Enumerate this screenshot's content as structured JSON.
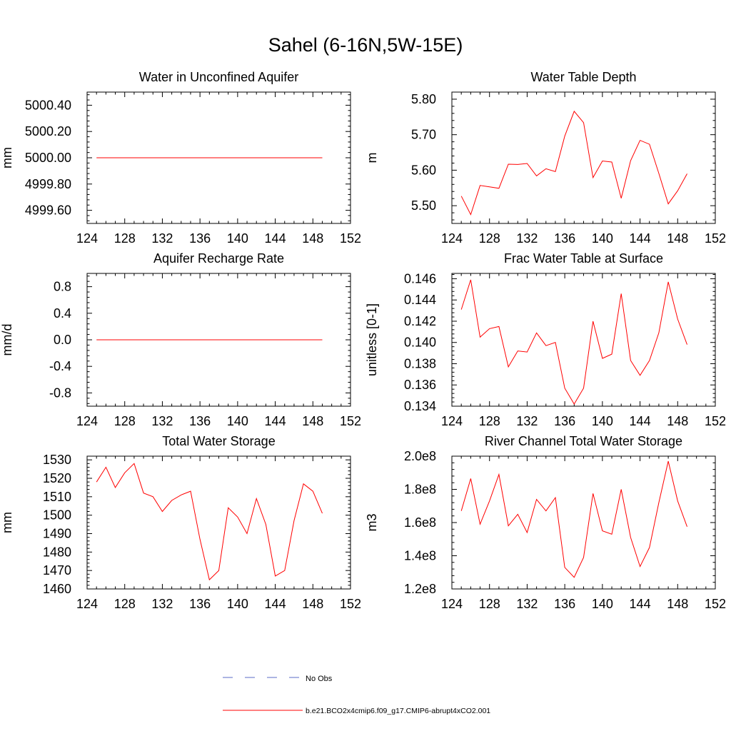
{
  "title": "Sahel (6-16N,5W-15E)",
  "colors": {
    "series": "#ff0000",
    "obs": "#5b6bc7",
    "axis": "#000000"
  },
  "chart_data": [
    {
      "id": "aquifer-water",
      "type": "line",
      "title": "Water in Unconfined Aquifer",
      "xlabel": "",
      "ylabel": "mm",
      "xlim": [
        124,
        152
      ],
      "ylim": [
        4999.5,
        5000.5
      ],
      "xticks": [
        "124",
        "128",
        "132",
        "136",
        "140",
        "144",
        "148",
        "152"
      ],
      "yticks": [
        {
          "v": 4999.6,
          "label": "4999.60"
        },
        {
          "v": 4999.8,
          "label": "4999.80"
        },
        {
          "v": 5000.0,
          "label": "5000.00"
        },
        {
          "v": 5000.2,
          "label": "5000.20"
        },
        {
          "v": 5000.4,
          "label": "5000.40"
        }
      ],
      "x": [
        125,
        126,
        127,
        128,
        129,
        130,
        131,
        132,
        133,
        134,
        135,
        136,
        137,
        138,
        139,
        140,
        141,
        142,
        143,
        144,
        145,
        146,
        147,
        148,
        149
      ],
      "series": [
        {
          "name": "b.e21.BCO2x4cmip6.f09_g17.CMIP6-abrupt4xCO2.001",
          "values": [
            5000,
            5000,
            5000,
            5000,
            5000,
            5000,
            5000,
            5000,
            5000,
            5000,
            5000,
            5000,
            5000,
            5000,
            5000,
            5000,
            5000,
            5000,
            5000,
            5000,
            5000,
            5000,
            5000,
            5000,
            5000
          ]
        }
      ]
    },
    {
      "id": "water-table-depth",
      "type": "line",
      "title": "Water Table Depth",
      "xlabel": "",
      "ylabel": "m",
      "xlim": [
        124,
        152
      ],
      "ylim": [
        5.45,
        5.82
      ],
      "xticks": [
        "124",
        "128",
        "132",
        "136",
        "140",
        "144",
        "148",
        "152"
      ],
      "yticks": [
        {
          "v": 5.5,
          "label": "5.50"
        },
        {
          "v": 5.6,
          "label": "5.60"
        },
        {
          "v": 5.7,
          "label": "5.70"
        },
        {
          "v": 5.8,
          "label": "5.80"
        }
      ],
      "x": [
        125,
        126,
        127,
        128,
        129,
        130,
        131,
        132,
        133,
        134,
        135,
        136,
        137,
        138,
        139,
        140,
        141,
        142,
        143,
        144,
        145,
        146,
        147,
        148,
        149
      ],
      "series": [
        {
          "name": "b.e21.BCO2x4cmip6.f09_g17.CMIP6-abrupt4xCO2.001",
          "values": [
            5.527,
            5.475,
            5.557,
            5.553,
            5.549,
            5.617,
            5.616,
            5.619,
            5.584,
            5.604,
            5.596,
            5.696,
            5.766,
            5.734,
            5.579,
            5.626,
            5.623,
            5.521,
            5.627,
            5.684,
            5.673,
            5.591,
            5.505,
            5.542,
            5.59
          ]
        }
      ]
    },
    {
      "id": "aquifer-recharge",
      "type": "line",
      "title": "Aquifer Recharge Rate",
      "xlabel": "",
      "ylabel": "mm/d",
      "xlim": [
        124,
        152
      ],
      "ylim": [
        -1.0,
        1.0
      ],
      "xticks": [
        "124",
        "128",
        "132",
        "136",
        "140",
        "144",
        "148",
        "152"
      ],
      "yticks": [
        {
          "v": -0.8,
          "label": "-0.8"
        },
        {
          "v": -0.4,
          "label": "-0.4"
        },
        {
          "v": 0.0,
          "label": "0.0"
        },
        {
          "v": 0.4,
          "label": "0.4"
        },
        {
          "v": 0.8,
          "label": "0.8"
        }
      ],
      "x": [
        125,
        126,
        127,
        128,
        129,
        130,
        131,
        132,
        133,
        134,
        135,
        136,
        137,
        138,
        139,
        140,
        141,
        142,
        143,
        144,
        145,
        146,
        147,
        148,
        149
      ],
      "series": [
        {
          "name": "b.e21.BCO2x4cmip6.f09_g17.CMIP6-abrupt4xCO2.001",
          "values": [
            0,
            0,
            0,
            0,
            0,
            0,
            0,
            0,
            0,
            0,
            0,
            0,
            0,
            0,
            0,
            0,
            0,
            0,
            0,
            0,
            0,
            0,
            0,
            0,
            0
          ]
        }
      ]
    },
    {
      "id": "frac-water-table",
      "type": "line",
      "title": "Frac Water Table at Surface",
      "xlabel": "",
      "ylabel": "unitless [0-1]",
      "xlim": [
        124,
        152
      ],
      "ylim": [
        0.134,
        0.1465
      ],
      "xticks": [
        "124",
        "128",
        "132",
        "136",
        "140",
        "144",
        "148",
        "152"
      ],
      "yticks": [
        {
          "v": 0.134,
          "label": "0.134"
        },
        {
          "v": 0.136,
          "label": "0.136"
        },
        {
          "v": 0.138,
          "label": "0.138"
        },
        {
          "v": 0.14,
          "label": "0.140"
        },
        {
          "v": 0.142,
          "label": "0.142"
        },
        {
          "v": 0.144,
          "label": "0.144"
        },
        {
          "v": 0.146,
          "label": "0.146"
        }
      ],
      "x": [
        125,
        126,
        127,
        128,
        129,
        130,
        131,
        132,
        133,
        134,
        135,
        136,
        137,
        138,
        139,
        140,
        141,
        142,
        143,
        144,
        145,
        146,
        147,
        148,
        149
      ],
      "series": [
        {
          "name": "b.e21.BCO2x4cmip6.f09_g17.CMIP6-abrupt4xCO2.001",
          "values": [
            0.1431,
            0.1459,
            0.1405,
            0.1413,
            0.1415,
            0.1377,
            0.1392,
            0.1391,
            0.1409,
            0.1397,
            0.14,
            0.1357,
            0.1342,
            0.1357,
            0.142,
            0.1385,
            0.1389,
            0.1446,
            0.1383,
            0.1369,
            0.1383,
            0.1409,
            0.1457,
            0.1422,
            0.1398
          ]
        }
      ]
    },
    {
      "id": "total-water-storage",
      "type": "line",
      "title": "Total Water Storage",
      "xlabel": "",
      "ylabel": "mm",
      "xlim": [
        124,
        152
      ],
      "ylim": [
        1460,
        1532
      ],
      "xticks": [
        "124",
        "128",
        "132",
        "136",
        "140",
        "144",
        "148",
        "152"
      ],
      "yticks": [
        {
          "v": 1460,
          "label": "1460"
        },
        {
          "v": 1470,
          "label": "1470"
        },
        {
          "v": 1480,
          "label": "1480"
        },
        {
          "v": 1490,
          "label": "1490"
        },
        {
          "v": 1500,
          "label": "1500"
        },
        {
          "v": 1510,
          "label": "1510"
        },
        {
          "v": 1520,
          "label": "1520"
        },
        {
          "v": 1530,
          "label": "1530"
        }
      ],
      "x": [
        125,
        126,
        127,
        128,
        129,
        130,
        131,
        132,
        133,
        134,
        135,
        136,
        137,
        138,
        139,
        140,
        141,
        142,
        143,
        144,
        145,
        146,
        147,
        148,
        149
      ],
      "series": [
        {
          "name": "b.e21.BCO2x4cmip6.f09_g17.CMIP6-abrupt4xCO2.001",
          "values": [
            1518,
            1526,
            1515,
            1523,
            1528,
            1512,
            1510,
            1502,
            1508,
            1511,
            1513,
            1487,
            1465,
            1470,
            1504,
            1499,
            1490,
            1509,
            1495,
            1467,
            1470,
            1497,
            1517,
            1513,
            1501
          ]
        }
      ]
    },
    {
      "id": "river-channel-storage",
      "type": "line",
      "title": "River Channel Total Water Storage",
      "xlabel": "",
      "ylabel": "m3",
      "xlim": [
        124,
        152
      ],
      "ylim": [
        120000000,
        200000000
      ],
      "xticks": [
        "124",
        "128",
        "132",
        "136",
        "140",
        "144",
        "148",
        "152"
      ],
      "yticks": [
        {
          "v": 120000000,
          "label": "1.2e8"
        },
        {
          "v": 140000000,
          "label": "1.4e8"
        },
        {
          "v": 160000000,
          "label": "1.6e8"
        },
        {
          "v": 180000000,
          "label": "1.8e8"
        },
        {
          "v": 200000000,
          "label": "2.0e8"
        }
      ],
      "x": [
        125,
        126,
        127,
        128,
        129,
        130,
        131,
        132,
        133,
        134,
        135,
        136,
        137,
        138,
        139,
        140,
        141,
        142,
        143,
        144,
        145,
        146,
        147,
        148,
        149
      ],
      "series": [
        {
          "name": "b.e21.BCO2x4cmip6.f09_g17.CMIP6-abrupt4xCO2.001",
          "values": [
            167000000,
            186500000,
            159000000,
            173000000,
            189000000,
            158000000,
            165000000,
            154000000,
            174000000,
            167000000,
            175000000,
            133000000,
            127000000,
            139000000,
            177500000,
            155000000,
            153000000,
            180000000,
            151000000,
            133500000,
            145000000,
            172000000,
            197000000,
            173000000,
            157500000
          ]
        }
      ]
    }
  ],
  "legend": {
    "placement": "bottom-center",
    "entries": [
      {
        "label": "No Obs",
        "style": "dashed",
        "color": "#5b6bc7"
      },
      {
        "label": "b.e21.BCO2x4cmip6.f09_g17.CMIP6-abrupt4xCO2.001",
        "style": "solid",
        "color": "#ff0000"
      }
    ]
  }
}
